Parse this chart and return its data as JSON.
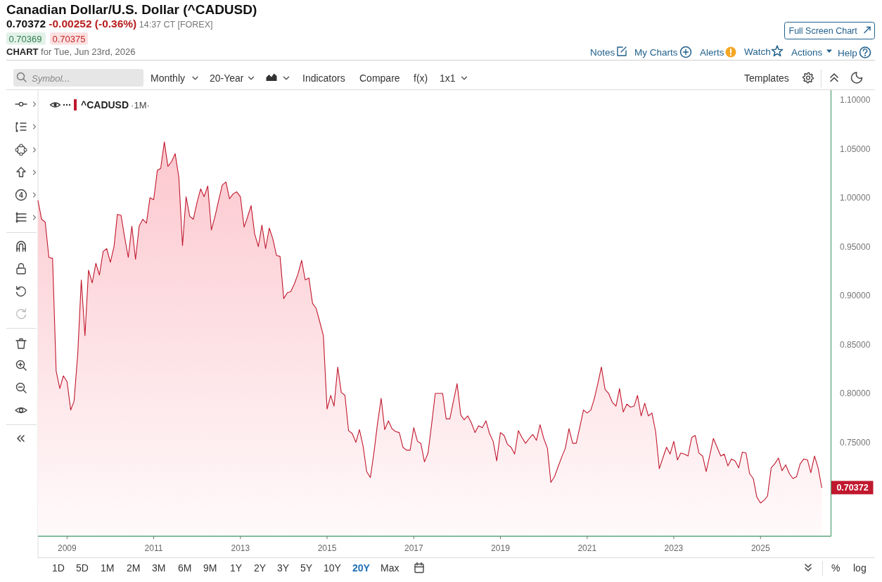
{
  "chart_data": {
    "type": "area",
    "title": "Canadian Dollar/U.S. Dollar (^CADUSD)",
    "subtitle": "0.70372 -0.00252 (-0.36%) 14:37 CT [FOREX]",
    "x": [
      "2008-05",
      "2008-06",
      "2008-07",
      "2008-08",
      "2008-09",
      "2008-10",
      "2008-11",
      "2008-12",
      "2009-01",
      "2009-02",
      "2009-03",
      "2009-04",
      "2009-05",
      "2009-06",
      "2009-07",
      "2009-08",
      "2009-09",
      "2009-10",
      "2009-11",
      "2009-12",
      "2010-01",
      "2010-02",
      "2010-03",
      "2010-04",
      "2010-05",
      "2010-06",
      "2010-07",
      "2010-08",
      "2010-09",
      "2010-10",
      "2010-11",
      "2010-12",
      "2011-01",
      "2011-02",
      "2011-03",
      "2011-04",
      "2011-05",
      "2011-06",
      "2011-07",
      "2011-08",
      "2011-09",
      "2011-10",
      "2011-11",
      "2011-12",
      "2012-01",
      "2012-02",
      "2012-03",
      "2012-04",
      "2012-05",
      "2012-06",
      "2012-07",
      "2012-08",
      "2012-09",
      "2012-10",
      "2012-11",
      "2012-12",
      "2013-01",
      "2013-02",
      "2013-03",
      "2013-04",
      "2013-05",
      "2013-06",
      "2013-07",
      "2013-08",
      "2013-09",
      "2013-10",
      "2013-11",
      "2013-12",
      "2014-01",
      "2014-02",
      "2014-03",
      "2014-04",
      "2014-05",
      "2014-06",
      "2014-07",
      "2014-08",
      "2014-09",
      "2014-10",
      "2014-11",
      "2014-12",
      "2015-01",
      "2015-02",
      "2015-03",
      "2015-04",
      "2015-05",
      "2015-06",
      "2015-07",
      "2015-08",
      "2015-09",
      "2015-10",
      "2015-11",
      "2015-12",
      "2016-01",
      "2016-02",
      "2016-03",
      "2016-04",
      "2016-05",
      "2016-06",
      "2016-07",
      "2016-08",
      "2016-09",
      "2016-10",
      "2016-11",
      "2016-12",
      "2017-01",
      "2017-02",
      "2017-03",
      "2017-04",
      "2017-05",
      "2017-06",
      "2017-07",
      "2017-08",
      "2017-09",
      "2017-10",
      "2017-11",
      "2017-12",
      "2018-01",
      "2018-02",
      "2018-03",
      "2018-04",
      "2018-05",
      "2018-06",
      "2018-07",
      "2018-08",
      "2018-09",
      "2018-10",
      "2018-11",
      "2018-12",
      "2019-01",
      "2019-02",
      "2019-03",
      "2019-04",
      "2019-05",
      "2019-06",
      "2019-07",
      "2019-08",
      "2019-09",
      "2019-10",
      "2019-11",
      "2019-12",
      "2020-01",
      "2020-02",
      "2020-03",
      "2020-04",
      "2020-05",
      "2020-06",
      "2020-07",
      "2020-08",
      "2020-09",
      "2020-10",
      "2020-11",
      "2020-12",
      "2021-01",
      "2021-02",
      "2021-03",
      "2021-04",
      "2021-05",
      "2021-06",
      "2021-07",
      "2021-08",
      "2021-09",
      "2021-10",
      "2021-11",
      "2021-12",
      "2022-01",
      "2022-02",
      "2022-03",
      "2022-04",
      "2022-05",
      "2022-06",
      "2022-07",
      "2022-08",
      "2022-09",
      "2022-10",
      "2022-11",
      "2022-12",
      "2023-01",
      "2023-02",
      "2023-03",
      "2023-04",
      "2023-05",
      "2023-06",
      "2023-07",
      "2023-08",
      "2023-09",
      "2023-10",
      "2023-11",
      "2023-12",
      "2024-01",
      "2024-02",
      "2024-03",
      "2024-04",
      "2024-05",
      "2024-06",
      "2024-07",
      "2024-08",
      "2024-09",
      "2024-10",
      "2024-11",
      "2024-12",
      "2025-01",
      "2025-02",
      "2025-03",
      "2025-04",
      "2025-05",
      "2025-06",
      "2025-07",
      "2025-08",
      "2025-09",
      "2025-10",
      "2025-11",
      "2025-12",
      "2026-01",
      "2026-02",
      "2026-03",
      "2026-04",
      "2026-05",
      "2026-06"
    ],
    "series": [
      {
        "name": "^CADUSD",
        "color": "#c0182e",
        "values": [
          0.997,
          0.978,
          0.975,
          0.939,
          0.938,
          0.823,
          0.805,
          0.818,
          0.812,
          0.783,
          0.792,
          0.84,
          0.916,
          0.859,
          0.926,
          0.913,
          0.933,
          0.921,
          0.945,
          0.948,
          0.934,
          0.95,
          0.983,
          0.982,
          0.96,
          0.939,
          0.971,
          0.937,
          0.971,
          0.978,
          0.974,
          1.0,
          0.998,
          1.028,
          1.03,
          1.057,
          1.032,
          1.037,
          1.045,
          1.021,
          0.951,
          1.001,
          0.981,
          0.978,
          0.995,
          1.009,
          1.001,
          1.012,
          0.967,
          0.981,
          0.997,
          1.013,
          1.016,
          0.999,
          1.004,
          1.006,
          1.001,
          0.97,
          0.98,
          0.992,
          0.963,
          0.95,
          0.972,
          0.948,
          0.969,
          0.958,
          0.941,
          0.94,
          0.897,
          0.903,
          0.904,
          0.912,
          0.922,
          0.936,
          0.916,
          0.918,
          0.892,
          0.887,
          0.873,
          0.859,
          0.784,
          0.798,
          0.787,
          0.827,
          0.801,
          0.798,
          0.762,
          0.759,
          0.75,
          0.763,
          0.746,
          0.72,
          0.714,
          0.74,
          0.769,
          0.795,
          0.763,
          0.772,
          0.764,
          0.761,
          0.76,
          0.745,
          0.742,
          0.742,
          0.765,
          0.751,
          0.749,
          0.73,
          0.739,
          0.769,
          0.8,
          0.8,
          0.8,
          0.774,
          0.774,
          0.792,
          0.81,
          0.778,
          0.773,
          0.777,
          0.77,
          0.76,
          0.767,
          0.765,
          0.772,
          0.759,
          0.751,
          0.731,
          0.76,
          0.757,
          0.748,
          0.745,
          0.738,
          0.762,
          0.755,
          0.749,
          0.754,
          0.758,
          0.752,
          0.768,
          0.754,
          0.744,
          0.709,
          0.715,
          0.725,
          0.735,
          0.744,
          0.764,
          0.749,
          0.749,
          0.766,
          0.783,
          0.78,
          0.783,
          0.794,
          0.81,
          0.827,
          0.804,
          0.8,
          0.791,
          0.787,
          0.805,
          0.781,
          0.789,
          0.786,
          0.787,
          0.798,
          0.777,
          0.79,
          0.777,
          0.78,
          0.761,
          0.723,
          0.734,
          0.745,
          0.738,
          0.751,
          0.732,
          0.739,
          0.738,
          0.736,
          0.755,
          0.757,
          0.739,
          0.736,
          0.72,
          0.737,
          0.754,
          0.745,
          0.736,
          0.738,
          0.726,
          0.733,
          0.731,
          0.724,
          0.74,
          0.739,
          0.718,
          0.713,
          0.694,
          0.688,
          0.691,
          0.695,
          0.724,
          0.728,
          0.734,
          0.721,
          0.727,
          0.718,
          0.713,
          0.715,
          0.728,
          0.733,
          0.732,
          0.719,
          0.736,
          0.724,
          0.70372
        ]
      }
    ],
    "xlim": [
      "2008-05-01",
      "2026-08-18"
    ],
    "xticks": [
      "2009",
      "2011",
      "2013",
      "2015",
      "2017",
      "2019",
      "2021",
      "2023",
      "2025"
    ],
    "ylim": [
      0.654,
      1.11
    ],
    "yticks": [
      {
        "value": 0.75,
        "label": "0.75000"
      },
      {
        "value": 0.8,
        "label": "0.80000"
      },
      {
        "value": 0.85,
        "label": "0.85000"
      },
      {
        "value": 0.9,
        "label": "0.90000"
      },
      {
        "value": 0.95,
        "label": "0.95000"
      },
      {
        "value": 1.0,
        "label": "1.00000"
      },
      {
        "value": 1.05,
        "label": "1.05000"
      },
      {
        "value": 1.1,
        "label": "1.10000"
      }
    ],
    "legend": "top left",
    "annotations": [
      "0.70369",
      "0.70375",
      "CHART for Tue, Jun 23rd, 2026",
      "Full Screen Chart",
      "Notes",
      "My Charts",
      "Alerts",
      "Watch",
      "Actions",
      "Help",
      "Symbol...",
      "Monthly",
      "20-Year",
      "Indicators",
      "Compare",
      "f(x)",
      "1x1",
      "Templates",
      "·1M·",
      "4",
      "1D",
      "5D",
      "1M",
      "2M",
      "3M",
      "6M",
      "9M",
      "1Y",
      "2Y",
      "3Y",
      "5Y",
      "10Y",
      "20Y",
      "Max",
      "%",
      "log",
      "0.70372"
    ]
  }
}
